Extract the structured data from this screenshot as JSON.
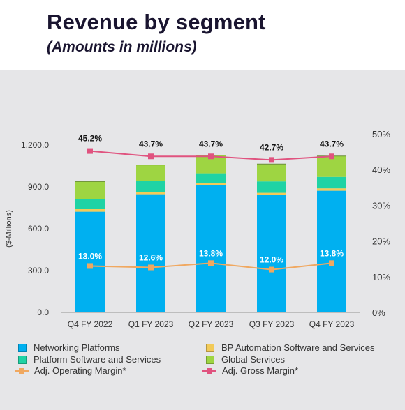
{
  "header": {
    "title": "Revenue by segment",
    "subtitle": "(Amounts in millions)"
  },
  "chart_data": {
    "type": "bar",
    "stacked": true,
    "categories": [
      "Q4 FY 2022",
      "Q1 FY 2023",
      "Q2 FY 2023",
      "Q3 FY 2023",
      "Q4 FY 2023"
    ],
    "ylabel": "($-Millions)",
    "ylim": [
      0,
      1200
    ],
    "yticks": [
      "0.0",
      "300.0",
      "600.0",
      "900.0",
      "1,200.0"
    ],
    "y2lim": [
      0,
      50
    ],
    "y2ticks": [
      "0%",
      "10%",
      "20%",
      "30%",
      "40%",
      "50%"
    ],
    "grid": false,
    "legend_position": "bottom",
    "series": [
      {
        "name": "Networking Platforms",
        "color": "#00b0f0",
        "values": [
          722,
          847,
          910,
          842,
          872
        ]
      },
      {
        "name": "BP Automation Software and Services",
        "color": "#f2ca58",
        "values": [
          18,
          16,
          17,
          15,
          17
        ]
      },
      {
        "name": "Platform Software and Services",
        "color": "#1fd3a5",
        "values": [
          75,
          78,
          70,
          82,
          82
        ]
      },
      {
        "name": "Global Services",
        "color": "#9ed542",
        "values": [
          123,
          116,
          130,
          125,
          150
        ]
      }
    ],
    "lines": [
      {
        "name": "Adj. Operating Margin*",
        "color": "#f0a860",
        "marker": "square",
        "axis": "right",
        "values": [
          13.0,
          12.6,
          13.8,
          12.0,
          13.8
        ],
        "labels": [
          "13.0%",
          "12.6%",
          "13.8%",
          "12.0%",
          "13.8%"
        ]
      },
      {
        "name": "Adj. Gross Margin*",
        "color": "#e0537f",
        "marker": "square",
        "axis": "right",
        "values": [
          45.2,
          43.7,
          43.7,
          42.7,
          43.7
        ],
        "labels": [
          "45.2%",
          "43.7%",
          "43.7%",
          "42.7%",
          "43.7%"
        ]
      }
    ]
  },
  "legend": {
    "items": [
      {
        "label": "Networking Platforms",
        "kind": "box",
        "color": "#00b0f0"
      },
      {
        "label": "BP Automation Software and Services",
        "kind": "box",
        "color": "#f2ca58"
      },
      {
        "label": "Platform Software and Services",
        "kind": "box",
        "color": "#1fd3a5"
      },
      {
        "label": "Global Services",
        "kind": "box",
        "color": "#9ed542"
      },
      {
        "label": "Adj. Operating Margin*",
        "kind": "line",
        "color": "#f0a860"
      },
      {
        "label": "Adj. Gross Margin*",
        "kind": "line",
        "color": "#e0537f"
      }
    ]
  }
}
